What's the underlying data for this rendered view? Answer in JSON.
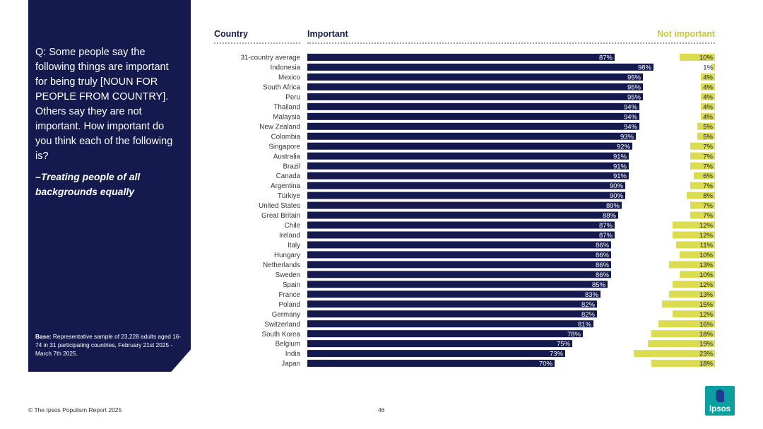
{
  "sidebar": {
    "question": "Q: Some people say the following things are important for being truly [NOUN FOR PEOPLE FROM COUNTRY]. Others say they are not important. How important do you think each of the following is?",
    "subquestion": "–Treating people of all backgrounds equally",
    "base_label": "Base:",
    "base_text": "Representative sample of 23,228 adults aged 16-74 in 31 participating countries, February 21st 2025 - March 7th 2025."
  },
  "footer": {
    "copyright": "© The Ipsos Populism Report 2025",
    "page_number": "46",
    "logo_text": "Ipsos"
  },
  "colors": {
    "important": "#141a4e",
    "not_important": "#dcdc50",
    "sidebar": "#141a4e",
    "logo": "#0b9f9f"
  },
  "chart_data": {
    "type": "bar",
    "orientation": "horizontal-diverging",
    "column_header_country": "Country",
    "column_header_important": "Important",
    "column_header_not_important": "Not important",
    "xlim": [
      0,
      100
    ],
    "categories": [
      "31-country average",
      "Indonesia",
      "Mexico",
      "South Africa",
      "Peru",
      "Thailand",
      "Malaysia",
      "New Zealand",
      "Colombia",
      "Singapore",
      "Australia",
      "Brazil",
      "Canada",
      "Argentina",
      "Türkiye",
      "United States",
      "Great Britain",
      "Chile",
      "Ireland",
      "Italy",
      "Hungary",
      "Netherlands",
      "Sweden",
      "Spain",
      "France",
      "Poland",
      "Germany",
      "Switzerland",
      "South Korea",
      "Belgium",
      "India",
      "Japan"
    ],
    "series": [
      {
        "name": "Important",
        "values": [
          87,
          98,
          95,
          95,
          95,
          94,
          94,
          94,
          93,
          92,
          91,
          91,
          91,
          90,
          90,
          89,
          88,
          87,
          87,
          86,
          86,
          86,
          86,
          85,
          83,
          82,
          82,
          81,
          78,
          75,
          73,
          70
        ]
      },
      {
        "name": "Not important",
        "values": [
          10,
          1,
          4,
          4,
          4,
          4,
          4,
          5,
          5,
          7,
          7,
          7,
          6,
          7,
          8,
          7,
          7,
          12,
          12,
          11,
          10,
          13,
          10,
          12,
          13,
          15,
          12,
          16,
          18,
          19,
          23,
          18
        ]
      }
    ],
    "value_labels_important": [
      "87%",
      "98%",
      "95%",
      "95%",
      "95%",
      "94%",
      "94%",
      "94%",
      "93%",
      "92%",
      "91%",
      "91%",
      "91%",
      "90%",
      "90%",
      "89%",
      "88%",
      "87%",
      "87%",
      "86%",
      "86%",
      "86%",
      "86%",
      "85%",
      "83%",
      "82%",
      "82%",
      "81%",
      "78%",
      "75%",
      "73%",
      "70%"
    ],
    "value_labels_not_important": [
      "10%",
      "1%",
      "4%",
      "4%",
      "4%",
      "4%",
      "4%",
      "5%",
      "5%",
      "7%",
      "7%",
      "7%",
      "6%",
      "7%",
      "8%",
      "7%",
      "7%",
      "12%",
      "12%",
      "11%",
      "10%",
      "13%",
      "10%",
      "12%",
      "13%",
      "15%",
      "12%",
      "16%",
      "18%",
      "19%",
      "23%",
      "18%"
    ]
  }
}
